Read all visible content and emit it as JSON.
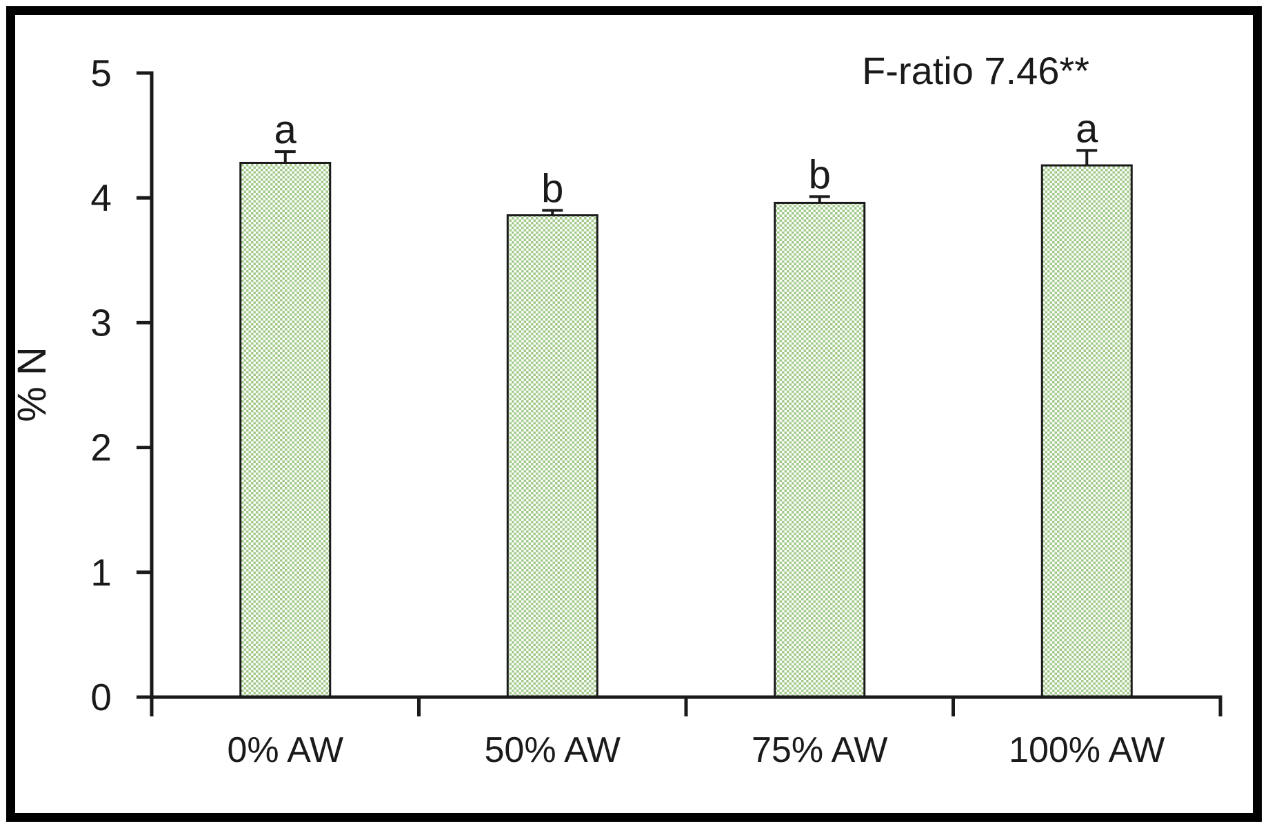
{
  "figure": {
    "background": "#ffffff",
    "border_color": "#000000"
  },
  "chart_data": {
    "type": "bar",
    "title": "",
    "annotation": "F-ratio 7.46**",
    "ylabel": "% N",
    "xlabel": "",
    "categories": [
      "0% AW",
      "50% AW",
      "75% AW",
      "100% AW"
    ],
    "values": [
      4.28,
      3.86,
      3.96,
      4.26
    ],
    "error_up": [
      0.09,
      0.04,
      0.05,
      0.12
    ],
    "sig_letters": [
      "a",
      "b",
      "b",
      "a"
    ],
    "ylim": [
      0,
      5
    ],
    "yticks": [
      0,
      1,
      2,
      3,
      4,
      5
    ],
    "grid": false,
    "legend": "none",
    "bar_pattern": "checkerboard",
    "bar_fill_color": "#a2ca8a",
    "bar_pattern_light_color": "#ffffff",
    "bar_stroke_color": "#1a1a1a",
    "axis_color": "#1a1a1a",
    "text_color": "#1a1a1a"
  }
}
